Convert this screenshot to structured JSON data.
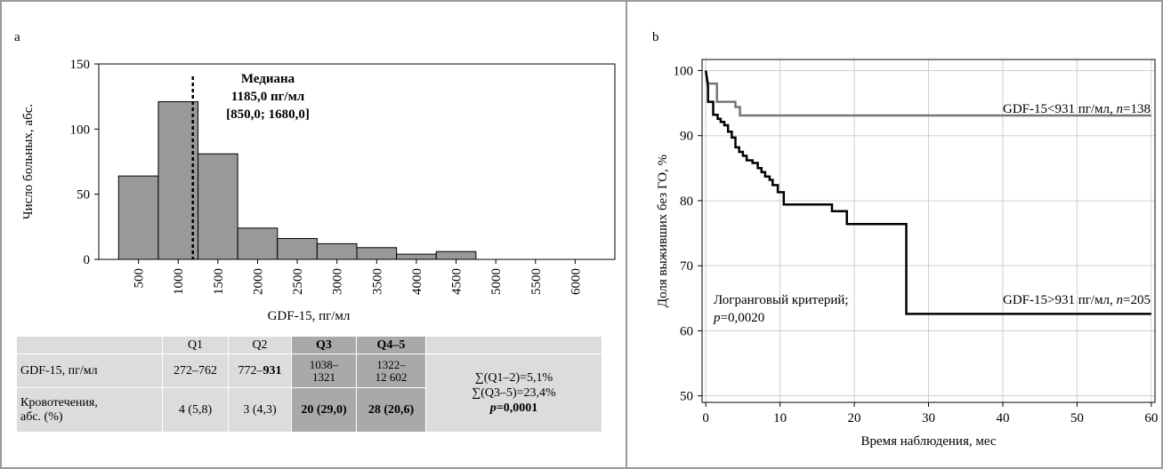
{
  "chart_data": [
    {
      "panel": "a",
      "type": "bar",
      "xlabel": "GDF-15, пг/мл",
      "ylabel": "Число больных, абс.",
      "ylim": [
        0,
        150
      ],
      "yticks": [
        0,
        50,
        100,
        150
      ],
      "xticks": [
        "500",
        "1000",
        "1500",
        "2000",
        "2500",
        "3000",
        "3500",
        "4000",
        "4500",
        "5000",
        "5500",
        "6000"
      ],
      "bins": [
        {
          "from": 250,
          "to": 750,
          "value": 64
        },
        {
          "from": 750,
          "to": 1250,
          "value": 121
        },
        {
          "from": 1250,
          "to": 1750,
          "value": 81
        },
        {
          "from": 1750,
          "to": 2250,
          "value": 24
        },
        {
          "from": 2250,
          "to": 2750,
          "value": 16
        },
        {
          "from": 2750,
          "to": 3250,
          "value": 12
        },
        {
          "from": 3250,
          "to": 3750,
          "value": 9
        },
        {
          "from": 3750,
          "to": 4250,
          "value": 4
        },
        {
          "from": 4250,
          "to": 4750,
          "value": 6
        }
      ],
      "xrange": [
        0,
        6500
      ],
      "median_line": 1185,
      "annotation": [
        "Медиана",
        "1185,0 пг/мл",
        "[850,0; 1680,0]"
      ]
    },
    {
      "panel": "b",
      "type": "line",
      "xlabel": "Время наблюдения, мес",
      "ylabel": "Доля выживших без ГО, %",
      "xlim": [
        0,
        60
      ],
      "ylim": [
        50,
        100
      ],
      "xticks": [
        0,
        10,
        20,
        30,
        40,
        50,
        60
      ],
      "yticks": [
        50,
        60,
        70,
        80,
        90,
        100
      ],
      "grid": true,
      "annotation_lines": [
        "Логранговый критерий;",
        "p=0,0020"
      ],
      "series": [
        {
          "name": "GDF-15<931 пг/мл, n=138",
          "color": "#777777",
          "points": [
            [
              0,
              100
            ],
            [
              0.3,
              98
            ],
            [
              1.5,
              98
            ],
            [
              1.5,
              95.2
            ],
            [
              4,
              95.2
            ],
            [
              4,
              94.4
            ],
            [
              4.6,
              94.4
            ],
            [
              4.6,
              93.1
            ],
            [
              60,
              93.1
            ]
          ]
        },
        {
          "name": "GDF-15>931 пг/мл, n=205",
          "color": "#000000",
          "points": [
            [
              0,
              100
            ],
            [
              0.3,
              97.5
            ],
            [
              0.3,
              95.2
            ],
            [
              1.0,
              95.2
            ],
            [
              1.0,
              93.2
            ],
            [
              1.6,
              93.2
            ],
            [
              1.6,
              92.6
            ],
            [
              2.0,
              92.6
            ],
            [
              2.0,
              92.1
            ],
            [
              2.5,
              92.1
            ],
            [
              2.5,
              91.6
            ],
            [
              3.0,
              91.6
            ],
            [
              3.0,
              90.6
            ],
            [
              3.5,
              90.6
            ],
            [
              3.5,
              89.7
            ],
            [
              4.0,
              89.7
            ],
            [
              4.0,
              88.2
            ],
            [
              4.5,
              88.2
            ],
            [
              4.5,
              87.5
            ],
            [
              5.0,
              87.5
            ],
            [
              5.0,
              86.9
            ],
            [
              5.5,
              86.9
            ],
            [
              5.5,
              86.2
            ],
            [
              6.3,
              86.2
            ],
            [
              6.3,
              85.8
            ],
            [
              7.0,
              85.8
            ],
            [
              7.0,
              85.0
            ],
            [
              7.5,
              85.0
            ],
            [
              7.5,
              84.4
            ],
            [
              8.0,
              84.4
            ],
            [
              8.0,
              83.7
            ],
            [
              8.6,
              83.7
            ],
            [
              8.6,
              83.2
            ],
            [
              9.0,
              83.2
            ],
            [
              9.0,
              82.4
            ],
            [
              9.7,
              82.4
            ],
            [
              9.7,
              81.3
            ],
            [
              10.5,
              81.3
            ],
            [
              10.5,
              79.4
            ],
            [
              17.0,
              79.4
            ],
            [
              17.0,
              78.4
            ],
            [
              19.0,
              78.4
            ],
            [
              19.0,
              76.4
            ],
            [
              27.0,
              76.4
            ],
            [
              27.0,
              62.6
            ],
            [
              60,
              62.6
            ]
          ]
        }
      ]
    },
    {
      "panel": "a-table",
      "type": "table",
      "columns": [
        "",
        "Q1",
        "Q2",
        "Q3",
        "Q4–5",
        ""
      ],
      "rows": [
        {
          "label": "GDF-15, пг/мл",
          "cells": [
            "272–762",
            "772–",
            "931",
            "1038–1321",
            "1322–12 602"
          ]
        },
        {
          "label": "Кровотечения, абс. (%)",
          "cells": [
            "4 (5,8)",
            "3 (4,3)",
            "20 (29,0)",
            "28 (20,6)"
          ]
        }
      ],
      "summary": [
        "∑(Q1–2)=5,1%",
        "∑(Q3–5)=23,4%",
        "p=0,0001"
      ]
    }
  ],
  "labels": {
    "panel_a": "a",
    "panel_b": "b",
    "table": {
      "q1": "Q1",
      "q2": "Q2",
      "q3": "Q3",
      "q45": "Q4–5",
      "row1_label": "GDF-15, пг/мл",
      "row2_label_line1": "Кровотечения,",
      "row2_label_line2": "абс. (%)",
      "r1_q1": "272–762",
      "r1_q2_a": "772–",
      "r1_q2_b": "931",
      "r1_q3_line1": "1038–",
      "r1_q3_line2": "1321",
      "r1_q45_line1": "1322–",
      "r1_q45_line2": "12 602",
      "r2_q1": "4 (5,8)",
      "r2_q2": "3 (4,3)",
      "r2_q3": "20 (29,0)",
      "r2_q45": "28 (20,6)",
      "sum1": "∑(Q1–2)=5,1%",
      "sum2": "∑(Q3–5)=23,4%",
      "p_label": "p",
      "p_value": "=0,0001"
    }
  },
  "colors": {
    "bar_fill": "#999999",
    "table_light": "#dcdcdc",
    "table_dark": "#a9a9a9",
    "km_low": "#777777",
    "km_high": "#000000",
    "grid": "#cfcfcf"
  }
}
